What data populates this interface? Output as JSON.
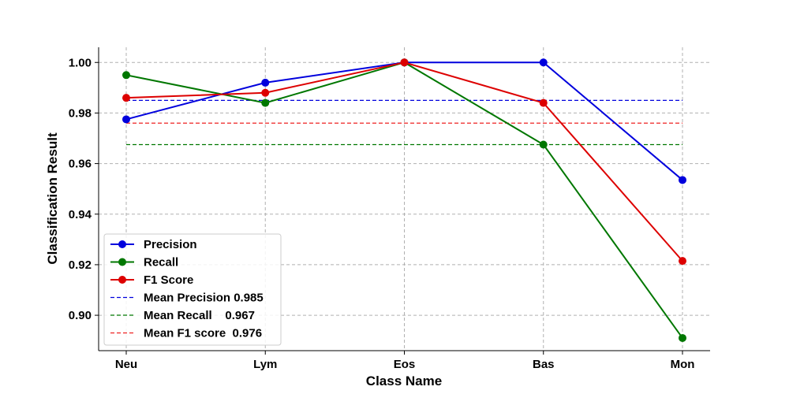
{
  "chart_data": {
    "type": "line",
    "title": "",
    "xlabel": "Class Name",
    "ylabel": "Classification Result",
    "categories": [
      "Neu",
      "Lym",
      "Eos",
      "Bas",
      "Mon"
    ],
    "ylim": [
      0.886,
      1.006
    ],
    "yticks": [
      0.9,
      0.92,
      0.94,
      0.96,
      0.98,
      1.0
    ],
    "ytick_labels": [
      "0.90",
      "0.92",
      "0.94",
      "0.96",
      "0.98",
      "1.00"
    ],
    "grid": true,
    "legend_position": "bottom-left",
    "series": [
      {
        "name": "Precision",
        "color": "#0000dd",
        "values": [
          0.9775,
          0.992,
          1.0,
          1.0,
          0.9535
        ]
      },
      {
        "name": "Recall",
        "color": "#007700",
        "values": [
          0.995,
          0.984,
          1.0,
          0.9675,
          0.891
        ]
      },
      {
        "name": "F1 Score",
        "color": "#dd0000",
        "values": [
          0.986,
          0.988,
          1.0,
          0.984,
          0.9215
        ]
      }
    ],
    "mean_lines": [
      {
        "name": "Mean Precision 0.985",
        "color": "#0000dd",
        "value": 0.985
      },
      {
        "name": "Mean Recall    0.967",
        "color": "#007700",
        "value": 0.9675
      },
      {
        "name": "Mean F1 score  0.976",
        "color": "#ee2222",
        "value": 0.976
      }
    ]
  }
}
